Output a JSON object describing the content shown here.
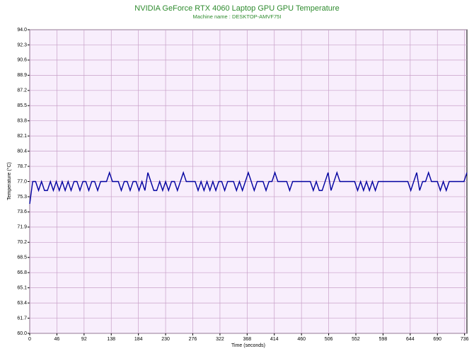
{
  "chart_data": {
    "type": "line",
    "title": "NVIDIA GeForce RTX 4060 Laptop GPU GPU Temperature",
    "subtitle": "Machine name : DESKTOP-AMVF75I",
    "x_label": "Time (seconds)",
    "y_label": "Temperature (°C)",
    "color": "#0000a0",
    "grid": true,
    "xlim": [
      0,
      740
    ],
    "ylim": [
      60,
      94
    ],
    "xticks": [
      0,
      46,
      92,
      138,
      184,
      230,
      276,
      322,
      368,
      414,
      460,
      506,
      552,
      598,
      644,
      690,
      736
    ],
    "yticks": [
      {
        "value": 60,
        "label": "60.0"
      },
      61.7,
      63.4,
      65.1,
      66.8,
      68.5,
      70.2,
      71.9,
      73.6,
      75.3,
      {
        "value": 77,
        "label": "77.0"
      },
      78.7,
      80.4,
      82.1,
      83.8,
      85.5,
      87.2,
      88.9,
      90.6,
      92.3,
      {
        "value": 94,
        "label": "94.0"
      }
    ],
    "x": [
      0,
      5,
      10,
      15,
      20,
      25,
      30,
      35,
      40,
      45,
      50,
      55,
      60,
      65,
      70,
      75,
      80,
      85,
      90,
      95,
      100,
      105,
      110,
      115,
      120,
      125,
      130,
      135,
      140,
      145,
      150,
      155,
      160,
      165,
      170,
      175,
      180,
      185,
      190,
      195,
      200,
      205,
      210,
      215,
      220,
      225,
      230,
      235,
      240,
      245,
      250,
      255,
      260,
      265,
      270,
      275,
      280,
      285,
      290,
      295,
      300,
      305,
      310,
      315,
      320,
      325,
      330,
      335,
      340,
      345,
      350,
      355,
      360,
      365,
      370,
      375,
      380,
      385,
      390,
      395,
      400,
      405,
      410,
      415,
      420,
      425,
      430,
      435,
      440,
      445,
      450,
      455,
      460,
      465,
      470,
      475,
      480,
      485,
      490,
      495,
      500,
      505,
      510,
      515,
      520,
      525,
      530,
      535,
      540,
      545,
      550,
      555,
      560,
      565,
      570,
      575,
      580,
      585,
      590,
      595,
      600,
      605,
      610,
      615,
      620,
      625,
      630,
      635,
      640,
      645,
      650,
      655,
      660,
      665,
      670,
      675,
      680,
      685,
      690,
      695,
      700,
      705,
      710,
      715,
      720,
      725,
      730,
      735,
      740
    ],
    "values": [
      74.5,
      77,
      77,
      76,
      77,
      76,
      76,
      77,
      76,
      77,
      76,
      77,
      76,
      77,
      76,
      77,
      77,
      76,
      77,
      77,
      76,
      77,
      77,
      76,
      77,
      77,
      77,
      78,
      77,
      77,
      77,
      76,
      77,
      77,
      76,
      77,
      77,
      76,
      77,
      76,
      78,
      77,
      76,
      76,
      77,
      76,
      77,
      76,
      77,
      77,
      76,
      77,
      78,
      77,
      77,
      77,
      77,
      76,
      77,
      76,
      77,
      76,
      77,
      76,
      77,
      77,
      76,
      77,
      77,
      77,
      76,
      77,
      76,
      77,
      78,
      77,
      76,
      77,
      77,
      77,
      76,
      77,
      77,
      78,
      77,
      77,
      77,
      77,
      76,
      77,
      77,
      77,
      77,
      77,
      77,
      77,
      76,
      77,
      76,
      76,
      77,
      78,
      76,
      77,
      78,
      77,
      77,
      77,
      77,
      77,
      77,
      76,
      77,
      76,
      77,
      76,
      77,
      76,
      77,
      77,
      77,
      77,
      77,
      77,
      77,
      77,
      77,
      77,
      77,
      76,
      77,
      78,
      76,
      77,
      77,
      78,
      77,
      77,
      77,
      76,
      77,
      76,
      77,
      77,
      77,
      77,
      77,
      77,
      78
    ]
  }
}
